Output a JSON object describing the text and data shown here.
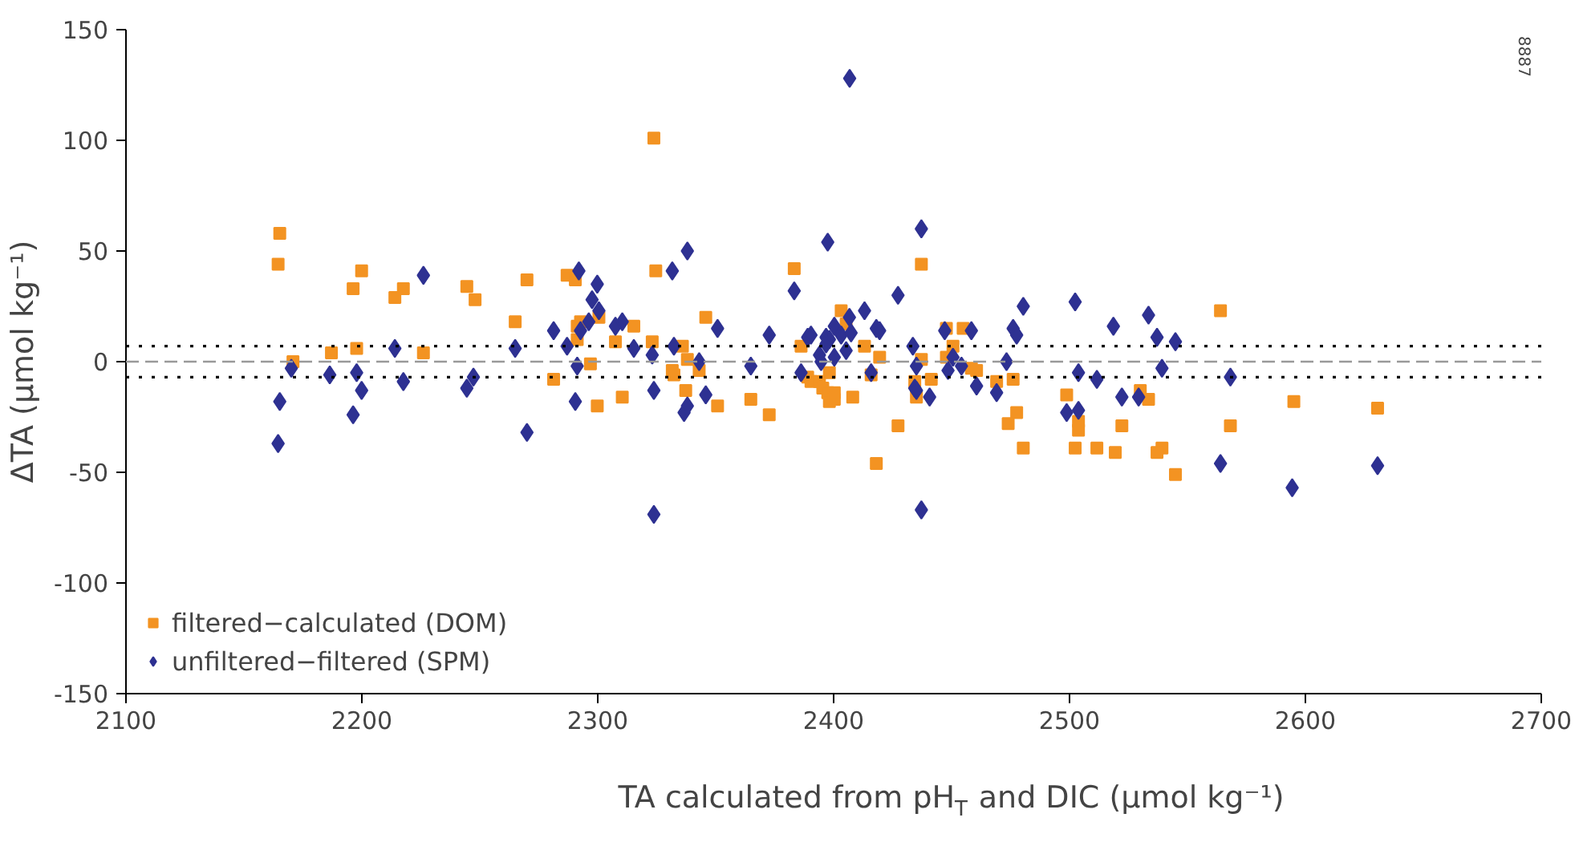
{
  "chart_data": {
    "type": "scatter",
    "xlabel": "TA calculated from pH$_{T}$ and DIC (µmol kg⁻¹)",
    "ylabel": "ΔTA (µmol kg⁻¹)",
    "xlim": [
      2100,
      2700
    ],
    "xticks": [
      2100,
      2200,
      2300,
      2400,
      2500,
      2600,
      2700
    ],
    "ylim": [
      -150,
      150
    ],
    "yticks": [
      -150,
      -100,
      -50,
      0,
      50,
      100,
      150
    ],
    "grid": false,
    "legend": "bottom left",
    "ref_lines": [
      {
        "axis": "y",
        "value": 0,
        "line_style": "dashed",
        "color": "#999999"
      },
      {
        "axis": "y",
        "value": 7,
        "line_style": "dotted",
        "color": "#000000"
      },
      {
        "axis": "y",
        "value": -7,
        "line_style": "dotted",
        "color": "#000000"
      }
    ],
    "annotations": [
      "8887"
    ],
    "series": [
      {
        "name": "filtered−calculated (DOM)",
        "color": "#f39322",
        "marker": "square",
        "x": [
          2165.2,
          2164.5,
          2199.9,
          2196.3,
          2214.0,
          2217.6,
          2244.5,
          2248.0,
          2187.1,
          2197.8,
          2226.1,
          2170.8,
          2323.8,
          2324.6,
          2270.0,
          2287.0,
          2290.5,
          2265.0,
          2292.7,
          2291.3,
          2300.5,
          2315.3,
          2291.3,
          2307.5,
          2323.1,
          2335.9,
          2338.0,
          2296.9,
          2331.6,
          2332.3,
          2281.3,
          2337.3,
          2299.8,
          2310.4,
          2383.3,
          2437.2,
          2345.8,
          2403.2,
          2405.3,
          2447.8,
          2386.2,
          2413.1,
          2450.6,
          2419.5,
          2437.2,
          2343.0,
          2398.2,
          2389.0,
          2390.4,
          2394.0,
          2395.4,
          2397.5,
          2400.3,
          2398.2,
          2400.3,
          2415.9,
          2408.1,
          2434.4,
          2435.1,
          2441.4,
          2350.8,
          2364.9,
          2372.7,
          2427.3,
          2418.1,
          2454.9,
          2447.8,
          2458.4,
          2460.6,
          2469.1,
          2476.1,
          2498.8,
          2477.6,
          2474.0,
          2480.4,
          2503.8,
          2503.8,
          2502.4,
          2511.6,
          2519.4,
          2522.2,
          2530.0,
          2533.5,
          2539.2,
          2537.1,
          2544.9,
          2564.0,
          2568.2,
          2595.1,
          2630.6
        ],
        "values": [
          58,
          44,
          41,
          33,
          29,
          33,
          34,
          28,
          4,
          6,
          4,
          0,
          101,
          41,
          37,
          39,
          37,
          18,
          18,
          16,
          20,
          16,
          10,
          9,
          9,
          7,
          1,
          -1,
          -4,
          -6,
          -8,
          -13,
          -20,
          -16,
          42,
          44,
          20,
          23,
          17,
          15,
          7,
          7,
          7,
          2,
          1,
          -4,
          -5,
          -7,
          -9,
          -9,
          -12,
          -14,
          -14,
          -18,
          -17,
          -6,
          -16,
          -9,
          -16,
          -8,
          -20,
          -17,
          -24,
          -29,
          -46,
          15,
          2,
          -3,
          -4,
          -9,
          -8,
          -15,
          -23,
          -28,
          -39,
          -27,
          -31,
          -39,
          -39,
          -41,
          -29,
          -13,
          -17,
          -39,
          -41,
          -51,
          23,
          -29,
          -18,
          -21
        ]
      },
      {
        "name": "unfiltered−filtered (SPM)",
        "color": "#2e3192",
        "marker": "diamond",
        "x": [
          2226.1,
          2214.0,
          2170.1,
          2186.4,
          2197.8,
          2199.9,
          2217.6,
          2244.5,
          2247.3,
          2165.2,
          2196.3,
          2164.5,
          2292.0,
          2331.6,
          2299.8,
          2297.6,
          2300.5,
          2296.2,
          2292.7,
          2307.5,
          2310.4,
          2281.3,
          2265.0,
          2287.0,
          2315.3,
          2323.1,
          2332.3,
          2291.3,
          2323.8,
          2290.5,
          2336.6,
          2270.0,
          2323.8,
          2338.0,
          2406.8,
          2397.5,
          2437.2,
          2383.3,
          2427.3,
          2413.1,
          2350.8,
          2372.7,
          2400.3,
          2406.7,
          2418.1,
          2419.5,
          2447.1,
          2389.0,
          2390.4,
          2396.8,
          2398.2,
          2396.8,
          2403.2,
          2407.4,
          2405.3,
          2400.3,
          2394.0,
          2394.7,
          2433.6,
          2343.0,
          2364.9,
          2386.2,
          2415.9,
          2435.1,
          2448.5,
          2450.6,
          2434.4,
          2435.1,
          2440.7,
          2345.8,
          2338.0,
          2437.2,
          2458.4,
          2480.4,
          2502.4,
          2476.1,
          2477.6,
          2454.2,
          2473.3,
          2460.6,
          2469.1,
          2503.8,
          2511.6,
          2518.6,
          2533.5,
          2537.1,
          2544.9,
          2539.2,
          2568.2,
          2498.8,
          2503.8,
          2522.2,
          2529.3,
          2564.0,
          2594.4,
          2630.6
        ],
        "values": [
          39,
          6,
          -3,
          -6,
          -5,
          -13,
          -9,
          -12,
          -7,
          -18,
          -24,
          -37,
          41,
          41,
          35,
          28,
          23,
          18,
          14,
          16,
          18,
          14,
          6,
          7,
          6,
          3,
          7,
          -2,
          -13,
          -18,
          -23,
          -32,
          -69,
          50,
          128,
          54,
          60,
          32,
          30,
          23,
          15,
          12,
          16,
          20,
          15,
          14,
          14,
          11,
          12,
          11,
          10,
          8,
          12,
          13,
          5,
          2,
          3,
          0,
          7,
          0,
          -2,
          -5,
          -5,
          -2,
          -4,
          2,
          -12,
          -13,
          -16,
          -15,
          -20,
          -67,
          14,
          25,
          27,
          15,
          12,
          -2,
          0,
          -11,
          -14,
          -5,
          -8,
          16,
          21,
          11,
          9,
          -3,
          -7,
          -23,
          -22,
          -16,
          -16,
          -46,
          -57,
          -47
        ]
      }
    ]
  }
}
